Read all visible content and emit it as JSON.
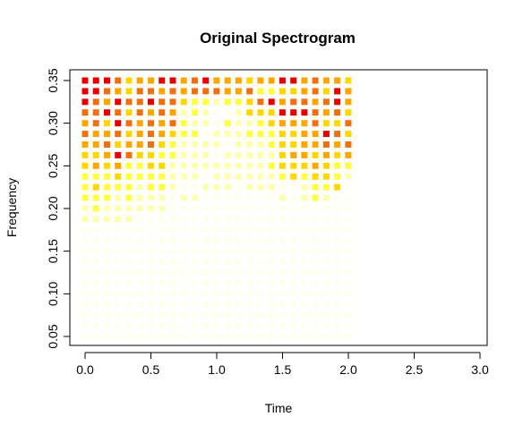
{
  "chart_data": {
    "type": "heatmap",
    "title": "Original Spectrogram",
    "xlabel": "Time",
    "ylabel": "Frequency",
    "xlim": [
      -0.1,
      3.05
    ],
    "ylim": [
      0.038,
      0.362
    ],
    "x_ticks": [
      "0.0",
      "0.5",
      "1.0",
      "1.5",
      "2.0",
      "2.5",
      "3.0"
    ],
    "x_tick_values": [
      0.0,
      0.5,
      1.0,
      1.5,
      2.0,
      2.5,
      3.0
    ],
    "y_ticks": [
      "0.05",
      "0.10",
      "0.15",
      "0.20",
      "0.25",
      "0.30",
      "0.35"
    ],
    "y_tick_values": [
      0.05,
      0.1,
      0.15,
      0.2,
      0.25,
      0.3,
      0.35
    ],
    "time_start": 0.0,
    "time_step": 0.0833,
    "freq_start": 0.05,
    "freq_step": 0.0125,
    "color_levels": [
      "#E60000",
      "#F07010",
      "#FFA500",
      "#FFD700",
      "#FFFF40",
      "#FFFFB0",
      "#FFFFEE"
    ],
    "intensity_rows": [
      "0001322002102223220021223",
      "0012311212111221443321302",
      "0120110113445443102112102",
      "1101312125456653330001213",
      "2130121214556455432221331",
      "1221321234465554443322013",
      "2213221345555655543322121",
      "3320133445556555553223232",
      "3232443355555555543332344",
      "4443444455565555554343345",
      "4344454456655565556654436",
      "4445455565566666665654566",
      "5455555566666666666666666",
      "5555566666666666666666666",
      "6666666666666666666666666",
      "6666666666666666666666666",
      "6666666666666666666666666",
      "6666666666666666666666666",
      "6666666666666666666666666",
      "6666666666666666666666666",
      "6666666666666666666666666",
      "6666666666666666666666666",
      "6666666666666666666666666",
      "6666666666666666666666666",
      "6666666666666666666666666"
    ]
  }
}
